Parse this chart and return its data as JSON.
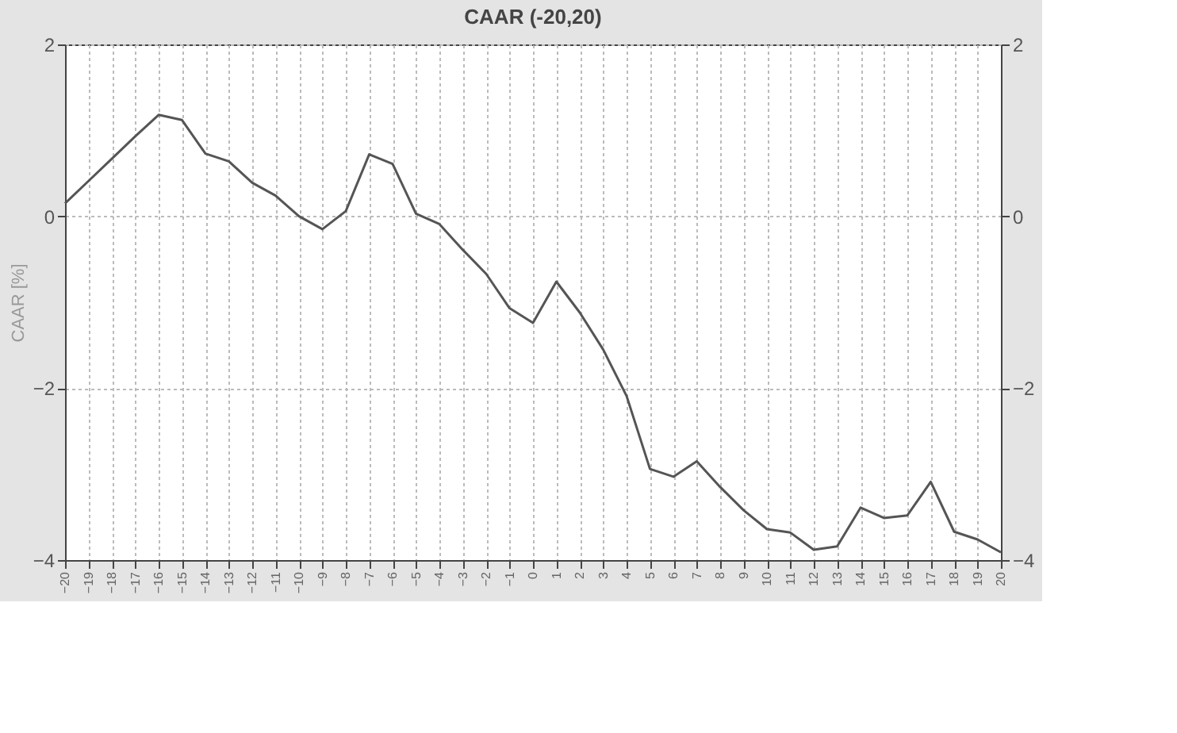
{
  "chart_data": {
    "type": "line",
    "title": "CAAR (-20,20)",
    "ylabel": "CAAR [%]",
    "x": [
      -20,
      -19,
      -18,
      -17,
      -16,
      -15,
      -14,
      -13,
      -12,
      -11,
      -10,
      -9,
      -8,
      -7,
      -6,
      -5,
      -4,
      -3,
      -2,
      -1,
      0,
      1,
      2,
      3,
      4,
      5,
      6,
      7,
      8,
      9,
      10,
      11,
      12,
      13,
      14,
      15,
      16,
      17,
      18,
      19,
      20
    ],
    "series": [
      {
        "color": "#555555",
        "values": [
          0.15,
          0.41,
          0.67,
          0.93,
          1.18,
          1.12,
          0.73,
          0.64,
          0.39,
          0.24,
          0.0,
          -0.15,
          0.06,
          0.72,
          0.61,
          0.03,
          -0.09,
          -0.39,
          -0.67,
          -1.07,
          -1.24,
          -0.76,
          -1.12,
          -1.55,
          -2.09,
          -2.94,
          -3.03,
          -2.85,
          -3.15,
          -3.42,
          -3.64,
          -3.68,
          -3.88,
          -3.84,
          -3.39,
          -3.51,
          -3.48,
          -3.09,
          -3.67,
          -3.76,
          -3.91
        ]
      }
    ],
    "xlim": [
      -20,
      20
    ],
    "xticks": [
      -20,
      -19,
      -18,
      -17,
      -16,
      -15,
      -14,
      -13,
      -12,
      -11,
      -10,
      -9,
      -8,
      -7,
      -6,
      -5,
      -4,
      -3,
      -2,
      -1,
      0,
      1,
      2,
      3,
      4,
      5,
      6,
      7,
      8,
      9,
      10,
      11,
      12,
      13,
      14,
      15,
      16,
      17,
      18,
      19,
      20
    ],
    "ylim": [
      -4,
      2
    ],
    "yticks": [
      -4,
      -2,
      0,
      2
    ],
    "y2lim": [
      -4,
      2
    ],
    "y2ticks": [
      -4,
      -2,
      0,
      2
    ],
    "grid": true,
    "marker": "none",
    "line_style": "solid"
  }
}
